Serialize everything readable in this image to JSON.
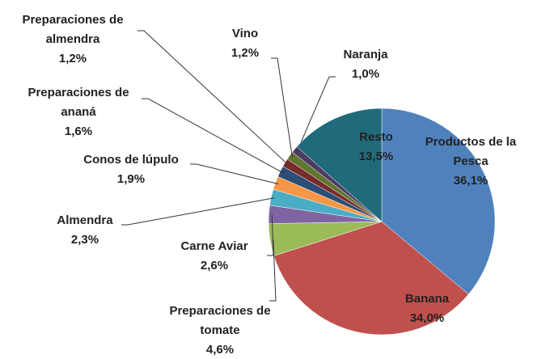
{
  "chart_data": {
    "type": "pie",
    "categories": [
      "Productos de la Pesca",
      "Banana",
      "Preparaciones de tomate",
      "Carne Aviar",
      "Almendra",
      "Conos de lúpulo",
      "Preparaciones de ananá",
      "Preparaciones de almendra",
      "Vino",
      "Naranja",
      "Resto"
    ],
    "values": [
      36.1,
      34.0,
      4.6,
      2.6,
      2.3,
      1.9,
      1.6,
      1.2,
      1.2,
      1.0,
      13.5
    ],
    "value_labels": [
      "36,1%",
      "34,0%",
      "4,6%",
      "2,6%",
      "2,3%",
      "1,9%",
      "1,6%",
      "1,2%",
      "1,2%",
      "1,0%",
      "13,5%"
    ],
    "colors": [
      "#4f81bd",
      "#c0504d",
      "#9bbb59",
      "#8064a2",
      "#4bacc6",
      "#f79646",
      "#2c4d75",
      "#772c2a",
      "#5f7530",
      "#4d3b62",
      "#1f6b7c"
    ]
  }
}
